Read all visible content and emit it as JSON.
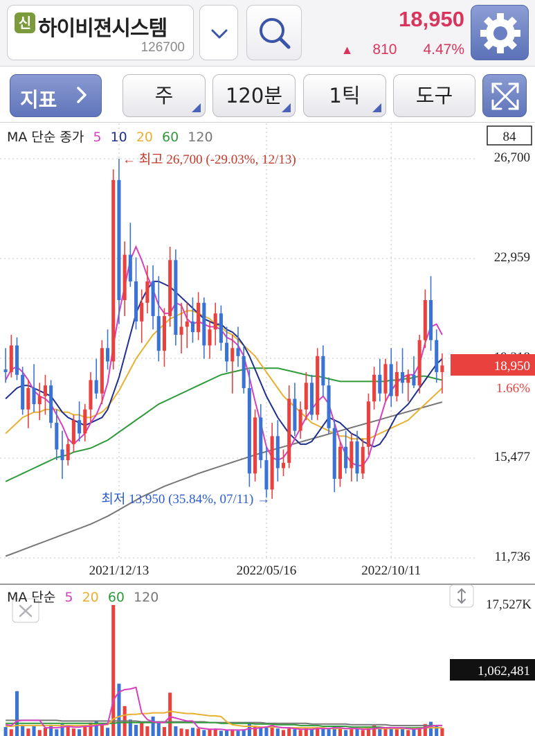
{
  "header": {
    "badge": "신",
    "stock_name": "하이비젼시스템",
    "stock_code": "126700",
    "price": "18,950",
    "change": "810",
    "change_pct": "4.47%",
    "up_marker": "▲"
  },
  "toolbar": {
    "indicator_label": "지표",
    "period_label": "주",
    "interval_label": "120분",
    "tick_label": "1틱",
    "tools_label": "도구"
  },
  "price_legend": {
    "title": "MA 단순 종가",
    "periods": [
      "5",
      "10",
      "20",
      "60",
      "120"
    ]
  },
  "volume_legend": {
    "title": "MA 단순",
    "periods": [
      "5",
      "20",
      "60",
      "120"
    ]
  },
  "colors": {
    "up": "#e8413e",
    "down": "#3b73d4",
    "ma5": "#d63fc0",
    "ma10": "#1f2f8f",
    "ma20": "#e8b030",
    "ma60": "#2f9a3a",
    "ma120": "#777777",
    "price_accent": "#d9345c"
  },
  "chart_data": {
    "type": "candlestick",
    "y_axis_labels": [
      "26,700",
      "22,959",
      "19,218",
      "15,477",
      "11,736"
    ],
    "x_axis_labels": [
      "2021/12/13",
      "2022/05/16",
      "2022/10/11"
    ],
    "right_box": "84",
    "current_price_label": "18,950",
    "current_pct_label": "1.66%",
    "high_annotation": "← 최고 26,700 (-29.03%, 12/13)",
    "low_annotation": "최저 13,950 (35.84%, 07/11) →",
    "high": 26700,
    "low": 13950,
    "ylim": [
      11736,
      26700
    ],
    "candles": [
      [
        18800,
        19600,
        18300,
        18700
      ],
      [
        18700,
        20100,
        18500,
        19700
      ],
      [
        19700,
        20000,
        18400,
        18600
      ],
      [
        18600,
        18900,
        17100,
        17300
      ],
      [
        17300,
        18400,
        16600,
        18100
      ],
      [
        18100,
        19000,
        17200,
        17500
      ],
      [
        17500,
        18300,
        16900,
        17800
      ],
      [
        17800,
        18600,
        17100,
        18200
      ],
      [
        18200,
        18400,
        16600,
        16800
      ],
      [
        16800,
        17300,
        15400,
        15800
      ],
      [
        15800,
        16500,
        14700,
        15400
      ],
      [
        15400,
        16200,
        15200,
        16000
      ],
      [
        16000,
        17100,
        15700,
        16900
      ],
      [
        16900,
        17600,
        16100,
        16400
      ],
      [
        16400,
        17500,
        16100,
        17300
      ],
      [
        17300,
        18700,
        16800,
        18400
      ],
      [
        18400,
        19200,
        17700,
        17900
      ],
      [
        17900,
        19900,
        17500,
        19600
      ],
      [
        19600,
        20300,
        18800,
        19100
      ],
      [
        19100,
        26300,
        18800,
        25900
      ],
      [
        25900,
        26700,
        20500,
        21400
      ],
      [
        21400,
        23600,
        20800,
        23100
      ],
      [
        23100,
        24300,
        21900,
        22100
      ],
      [
        22100,
        23000,
        20300,
        20600
      ],
      [
        20600,
        21800,
        19800,
        21300
      ],
      [
        21300,
        22700,
        20900,
        22100
      ],
      [
        22100,
        22700,
        20300,
        20800
      ],
      [
        20800,
        22300,
        19100,
        19500
      ],
      [
        19500,
        21100,
        18900,
        20800
      ],
      [
        20800,
        23400,
        20400,
        22900
      ],
      [
        22900,
        23300,
        19700,
        20100
      ],
      [
        20100,
        21300,
        19400,
        20400
      ],
      [
        20400,
        21300,
        19600,
        20600
      ],
      [
        20600,
        21500,
        19800,
        20200
      ],
      [
        20200,
        21700,
        19900,
        21300
      ],
      [
        21300,
        21500,
        19200,
        19700
      ],
      [
        19700,
        20600,
        19200,
        20300
      ],
      [
        20300,
        21300,
        19700,
        20900
      ],
      [
        20900,
        21200,
        19500,
        19800
      ],
      [
        19800,
        20400,
        18700,
        19100
      ],
      [
        19100,
        20100,
        17900,
        19600
      ],
      [
        19600,
        20400,
        18900,
        19300
      ],
      [
        19300,
        19700,
        17900,
        18100
      ],
      [
        18100,
        18800,
        14400,
        14900
      ],
      [
        14900,
        17300,
        14600,
        17000
      ],
      [
        17000,
        17500,
        15100,
        15400
      ],
      [
        15400,
        15900,
        14000,
        14300
      ],
      [
        14300,
        16800,
        13950,
        16300
      ],
      [
        16300,
        16900,
        14600,
        15100
      ],
      [
        15100,
        15800,
        14800,
        15300
      ],
      [
        15300,
        18200,
        15100,
        17700
      ],
      [
        17700,
        18300,
        16300,
        16500
      ],
      [
        16500,
        17600,
        16200,
        17300
      ],
      [
        17300,
        18700,
        16900,
        18300
      ],
      [
        18300,
        18600,
        16900,
        17100
      ],
      [
        17100,
        19600,
        16900,
        19300
      ],
      [
        19300,
        19700,
        17800,
        18200
      ],
      [
        18200,
        18500,
        16400,
        16600
      ],
      [
        16600,
        16900,
        14200,
        14700
      ],
      [
        14700,
        16100,
        14400,
        15900
      ],
      [
        15900,
        16500,
        14900,
        15100
      ],
      [
        15100,
        16400,
        14600,
        16100
      ],
      [
        16100,
        16500,
        14600,
        14900
      ],
      [
        14900,
        16200,
        14700,
        15900
      ],
      [
        15900,
        17900,
        15600,
        17600
      ],
      [
        17600,
        18900,
        17300,
        18600
      ],
      [
        18600,
        19200,
        17600,
        17900
      ],
      [
        17900,
        19200,
        17600,
        19000
      ],
      [
        19000,
        19600,
        17400,
        17800
      ],
      [
        17800,
        19100,
        17600,
        18700
      ],
      [
        18700,
        19600,
        17900,
        18300
      ],
      [
        18300,
        18800,
        17600,
        18600
      ],
      [
        18600,
        19300,
        18100,
        18200
      ],
      [
        18200,
        20100,
        17900,
        19900
      ],
      [
        19900,
        21800,
        19600,
        21400
      ],
      [
        21400,
        22300,
        19500,
        19900
      ],
      [
        19900,
        20300,
        18300,
        18700
      ],
      [
        18700,
        19400,
        17900,
        18950
      ]
    ],
    "ma_lines": {
      "ma5": [
        18400,
        18800,
        18900,
        18700,
        18400,
        18000,
        17800,
        17700,
        17500,
        17100,
        16700,
        16200,
        16000,
        16200,
        16400,
        16800,
        17100,
        17600,
        18300,
        19700,
        20900,
        21900,
        22900,
        23400,
        22900,
        22300,
        21800,
        21200,
        20900,
        20900,
        21300,
        21200,
        20700,
        20500,
        20600,
        20500,
        20400,
        20400,
        20300,
        20000,
        19900,
        19700,
        19300,
        18500,
        17600,
        16800,
        15900,
        15500,
        15400,
        15500,
        15800,
        16200,
        16600,
        17000,
        17300,
        17600,
        17800,
        17500,
        16800,
        16100,
        15600,
        15300,
        15200,
        15200,
        15500,
        16200,
        16900,
        17600,
        18000,
        18300,
        18500,
        18600,
        18600,
        19000,
        19800,
        20400,
        20500,
        20100
      ],
      "ma10": [
        17700,
        17900,
        18100,
        18200,
        18200,
        18100,
        18000,
        17900,
        17800,
        17500,
        17200,
        17000,
        16900,
        16800,
        16700,
        16800,
        16900,
        17000,
        17300,
        17900,
        18500,
        19300,
        20100,
        20900,
        21400,
        21800,
        22100,
        22100,
        22000,
        21900,
        21700,
        21500,
        21300,
        21100,
        20900,
        20700,
        20600,
        20500,
        20500,
        20300,
        20200,
        20000,
        19700,
        19300,
        18800,
        18300,
        17800,
        17400,
        17000,
        16700,
        16400,
        16200,
        16000,
        16000,
        16100,
        16400,
        16700,
        17000,
        16900,
        16800,
        16600,
        16400,
        16300,
        16100,
        16000,
        15900,
        16000,
        16300,
        16700,
        17100,
        17300,
        17500,
        17800,
        18100,
        18400,
        18700,
        19000,
        19200
      ],
      "ma20": [
        16400,
        16600,
        16800,
        17000,
        17100,
        17200,
        17200,
        17300,
        17300,
        17300,
        17200,
        17200,
        17100,
        17100,
        17000,
        17000,
        17100,
        17200,
        17400,
        17700,
        18000,
        18400,
        18800,
        19200,
        19500,
        19800,
        20100,
        20300,
        20500,
        20700,
        20800,
        20900,
        21000,
        21000,
        20900,
        20800,
        20700,
        20500,
        20400,
        20200,
        20100,
        19900,
        19700,
        19500,
        19300,
        19000,
        18700,
        18400,
        18100,
        17800,
        17600,
        17400,
        17200,
        17000,
        16800,
        16700,
        16600,
        16500,
        16400,
        16300,
        16300,
        16200,
        16200,
        16200,
        16200,
        16300,
        16400,
        16500,
        16600,
        16700,
        16800,
        16900,
        17100,
        17300,
        17500,
        17700,
        17900,
        18100
      ],
      "ma60": [
        14600,
        14700,
        14800,
        14900,
        15000,
        15100,
        15200,
        15300,
        15400,
        15500,
        15550,
        15600,
        15700,
        15750,
        15800,
        15850,
        15950,
        16050,
        16150,
        16300,
        16450,
        16600,
        16750,
        16900,
        17050,
        17200,
        17350,
        17500,
        17600,
        17700,
        17800,
        17900,
        18000,
        18100,
        18200,
        18300,
        18400,
        18500,
        18600,
        18650,
        18700,
        18750,
        18800,
        18850,
        18850,
        18850,
        18850,
        18850,
        18850,
        18800,
        18750,
        18700,
        18650,
        18600,
        18550,
        18550,
        18500,
        18450,
        18400,
        18350,
        18350,
        18350,
        18350,
        18350,
        18350,
        18350,
        18350,
        18350,
        18400,
        18400,
        18450,
        18450,
        18500,
        18550,
        18550,
        18500,
        18450,
        18400
      ],
      "ma120": [
        11800,
        11880,
        11960,
        12040,
        12120,
        12200,
        12280,
        12360,
        12440,
        12520,
        12600,
        12680,
        12760,
        12840,
        12920,
        13000,
        13100,
        13200,
        13300,
        13420,
        13540,
        13660,
        13780,
        13900,
        14020,
        14120,
        14220,
        14320,
        14420,
        14500,
        14580,
        14660,
        14740,
        14820,
        14900,
        14970,
        15040,
        15110,
        15180,
        15250,
        15320,
        15390,
        15460,
        15530,
        15600,
        15660,
        15720,
        15780,
        15840,
        15900,
        15960,
        16020,
        16080,
        16140,
        16200,
        16260,
        16320,
        16380,
        16440,
        16500,
        16560,
        16620,
        16680,
        16740,
        16800,
        16860,
        16920,
        16980,
        17040,
        17100,
        17160,
        17220,
        17280,
        17340,
        17400,
        17460,
        17520,
        17580
      ]
    },
    "volume": {
      "y_axis_max_label": "17,527K",
      "current_label": "1,062,481",
      "max": 17527000,
      "bars": [
        1200,
        900,
        6000,
        1500,
        1000,
        1300,
        800,
        1100,
        1500,
        900,
        1600,
        1200,
        1000,
        900,
        1400,
        1800,
        2000,
        1600,
        1100,
        17527,
        7000,
        4000,
        2200,
        1500,
        1900,
        1300,
        2600,
        1800,
        1200,
        5800,
        1300,
        1000,
        900,
        1100,
        1000,
        800,
        900,
        1000,
        700,
        800,
        900,
        700,
        900,
        1700,
        1200,
        1100,
        1300,
        1500,
        1000,
        800,
        1000,
        900,
        800,
        1100,
        900,
        1200,
        1000,
        900,
        1300,
        1100,
        800,
        900,
        1000,
        800,
        1100,
        1400,
        1200,
        1000,
        1100,
        900,
        1000,
        800,
        900,
        1100,
        1600,
        1900,
        1300,
        1062
      ],
      "ma5": [
        1500,
        1400,
        2000,
        2100,
        2100,
        2100,
        2100,
        1100,
        1100,
        1100,
        1200,
        1300,
        1200,
        1200,
        1300,
        1300,
        1400,
        1500,
        1600,
        4800,
        5900,
        6200,
        6300,
        6500,
        3100,
        2200,
        1900,
        1800,
        1800,
        2600,
        2400,
        2200,
        2000,
        2000,
        1100,
        1000,
        900,
        900,
        900,
        800,
        800,
        800,
        800,
        1000,
        1000,
        1100,
        1200,
        1400,
        1200,
        1100,
        1100,
        1000,
        900,
        900,
        900,
        1000,
        1000,
        1000,
        1100,
        1100,
        1000,
        1000,
        1000,
        900,
        900,
        1000,
        1100,
        1100,
        1100,
        1100,
        1100,
        1000,
        900,
        1000,
        1100,
        1300,
        1400,
        1400
      ],
      "ma20": [
        1300,
        1300,
        1400,
        1400,
        1400,
        1400,
        1400,
        1400,
        1400,
        1400,
        1400,
        1400,
        1400,
        1400,
        1400,
        1400,
        1500,
        1500,
        1500,
        2300,
        2600,
        2800,
        2900,
        2900,
        3000,
        3000,
        3100,
        3100,
        3100,
        3300,
        3200,
        3100,
        3000,
        3000,
        2900,
        2800,
        2700,
        2700,
        2600,
        1900,
        1500,
        1400,
        1300,
        1300,
        1300,
        1200,
        1200,
        1200,
        1200,
        1100,
        1100,
        1100,
        1100,
        1100,
        1100,
        1100,
        1100,
        1000,
        1000,
        1000,
        1000,
        1000,
        1000,
        1000,
        1000,
        1000,
        1000,
        1000,
        1000,
        1000,
        1000,
        1000,
        1000,
        1000,
        1100,
        1100,
        1100,
        1100
      ],
      "ma60": [
        1700,
        1700,
        1700,
        1700,
        1700,
        1700,
        1700,
        1700,
        1700,
        1700,
        1700,
        1700,
        1700,
        1700,
        1700,
        1700,
        1700,
        1700,
        1700,
        1700,
        1800,
        1800,
        1800,
        1800,
        1800,
        1800,
        1800,
        1800,
        1800,
        1800,
        1800,
        1800,
        1800,
        1800,
        1800,
        1800,
        1800,
        1800,
        1700,
        1700,
        1700,
        1700,
        1700,
        1700,
        1600,
        1600,
        1600,
        1600,
        1500,
        1500,
        1500,
        1500,
        1400,
        1400,
        1400,
        1400,
        1300,
        1300,
        1300,
        1300,
        1300,
        1200,
        1200,
        1200,
        1200,
        1200,
        1200,
        1100,
        1100,
        1100,
        1100,
        1100,
        1100,
        1100,
        1100,
        1100,
        1100,
        1100
      ],
      "ma120": [
        2100,
        2100,
        2100,
        2100,
        2100,
        2100,
        2100,
        2100,
        2100,
        2100,
        2000,
        2000,
        2000,
        2000,
        2000,
        2000,
        2000,
        2000,
        2000,
        2000,
        2000,
        2000,
        2000,
        2000,
        1900,
        1900,
        1900,
        1900,
        1900,
        1900,
        1900,
        1900,
        1900,
        1900,
        1900,
        1900,
        1800,
        1800,
        1800,
        1800,
        1800,
        1800,
        1800,
        1800,
        1800,
        1800,
        1700,
        1700,
        1700,
        1700,
        1700,
        1700,
        1700,
        1700,
        1600,
        1600,
        1600,
        1600,
        1600,
        1600,
        1600,
        1500,
        1500,
        1500,
        1500,
        1500,
        1500,
        1500,
        1400,
        1400,
        1400,
        1400,
        1400,
        1400,
        1400,
        1400,
        1400,
        1400
      ]
    }
  }
}
